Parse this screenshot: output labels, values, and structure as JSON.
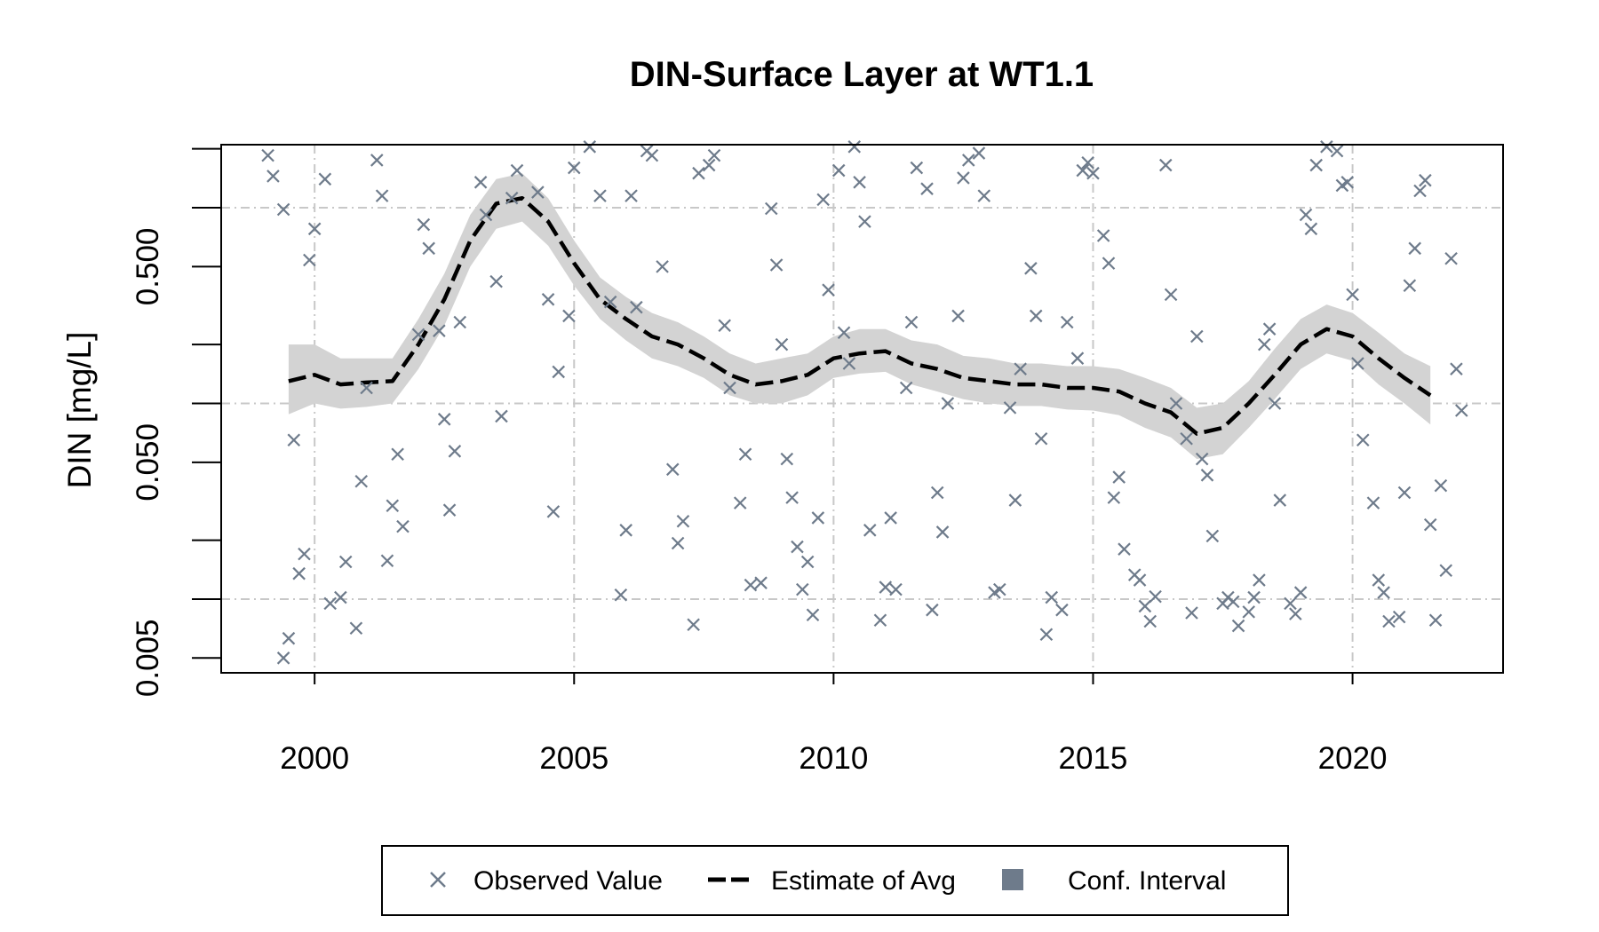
{
  "chart_data": {
    "type": "scatter",
    "title": "DIN-Surface Layer at WT1.1",
    "xlabel": "",
    "ylabel": "DIN [mg/L]",
    "y_scale": "log",
    "xlim": [
      1998.2,
      2022.9
    ],
    "ylim": [
      0.0042,
      2.1
    ],
    "x_ticks": [
      2000,
      2005,
      2010,
      2015,
      2020
    ],
    "x_tick_labels": [
      "2000",
      "2005",
      "2010",
      "2015",
      "2020"
    ],
    "y_ticks": [
      0.005,
      0.05,
      0.5
    ],
    "y_tick_labels": [
      "0.005",
      "0.050",
      "0.500"
    ],
    "y_minor_ticks": [
      0.01,
      0.02,
      0.1,
      0.2,
      1.0,
      2.0
    ],
    "grid": true,
    "colors": {
      "observed": "#6e7b8b",
      "estimate": "#000000",
      "ci": "#d3d3d3",
      "grid": "#c8c8c8"
    },
    "legend": {
      "position": "bottom",
      "items": [
        {
          "label": "Observed Value",
          "icon": "x-marker"
        },
        {
          "label": "Estimate of Avg",
          "icon": "dashed-line"
        },
        {
          "label": "Conf. Interval",
          "icon": "filled-square"
        }
      ]
    },
    "series": [
      {
        "name": "Observed Value",
        "type": "scatter",
        "points": [
          [
            1999.1,
            1.85
          ],
          [
            1999.2,
            1.45
          ],
          [
            1999.4,
            0.98
          ],
          [
            1999.6,
            0.065
          ],
          [
            1999.7,
            0.0135
          ],
          [
            1999.8,
            0.017
          ],
          [
            1999.5,
            0.0063
          ],
          [
            1999.4,
            0.005
          ],
          [
            1999.9,
            0.54
          ],
          [
            2000.0,
            0.78
          ],
          [
            2000.2,
            1.4
          ],
          [
            2000.3,
            0.0095
          ],
          [
            2000.5,
            0.0102
          ],
          [
            2000.6,
            0.0155
          ],
          [
            2000.8,
            0.0071
          ],
          [
            2000.9,
            0.04
          ],
          [
            2001.0,
            0.12
          ],
          [
            2001.2,
            1.75
          ],
          [
            2001.3,
            1.15
          ],
          [
            2001.4,
            0.0157
          ],
          [
            2001.5,
            0.03
          ],
          [
            2001.6,
            0.055
          ],
          [
            2001.7,
            0.0235
          ],
          [
            2002.0,
            0.225
          ],
          [
            2002.1,
            0.82
          ],
          [
            2002.2,
            0.62
          ],
          [
            2002.4,
            0.235
          ],
          [
            2002.5,
            0.083
          ],
          [
            2002.6,
            0.0285
          ],
          [
            2002.7,
            0.057
          ],
          [
            2002.8,
            0.26
          ],
          [
            2003.2,
            1.35
          ],
          [
            2003.3,
            0.92
          ],
          [
            2003.5,
            0.42
          ],
          [
            2003.6,
            0.086
          ],
          [
            2003.8,
            1.12
          ],
          [
            2003.9,
            1.55
          ],
          [
            2004.1,
            2.1
          ],
          [
            2004.3,
            1.2
          ],
          [
            2004.5,
            0.34
          ],
          [
            2004.6,
            0.028
          ],
          [
            2004.7,
            0.145
          ],
          [
            2004.9,
            0.28
          ],
          [
            2005.0,
            1.6
          ],
          [
            2005.3,
            2.05
          ],
          [
            2005.5,
            1.15
          ],
          [
            2005.7,
            0.33
          ],
          [
            2005.9,
            0.0105
          ],
          [
            2006.0,
            0.0225
          ],
          [
            2006.1,
            1.15
          ],
          [
            2006.2,
            0.31
          ],
          [
            2006.4,
            1.95
          ],
          [
            2006.5,
            1.85
          ],
          [
            2006.7,
            0.5
          ],
          [
            2006.9,
            0.046
          ],
          [
            2007.0,
            0.0193
          ],
          [
            2007.1,
            0.025
          ],
          [
            2007.3,
            0.0074
          ],
          [
            2007.4,
            1.5
          ],
          [
            2007.6,
            1.65
          ],
          [
            2007.7,
            1.85
          ],
          [
            2007.9,
            0.25
          ],
          [
            2008.0,
            0.12
          ],
          [
            2008.2,
            0.031
          ],
          [
            2008.3,
            0.055
          ],
          [
            2008.4,
            0.0118
          ],
          [
            2008.6,
            0.0121
          ],
          [
            2008.8,
            0.99
          ],
          [
            2008.9,
            0.51
          ],
          [
            2009.0,
            0.2
          ],
          [
            2009.1,
            0.052
          ],
          [
            2009.2,
            0.033
          ],
          [
            2009.3,
            0.0185
          ],
          [
            2009.4,
            0.0112
          ],
          [
            2009.5,
            0.0155
          ],
          [
            2009.6,
            0.0083
          ],
          [
            2009.7,
            0.026
          ],
          [
            2009.8,
            1.1
          ],
          [
            2009.9,
            0.38
          ],
          [
            2010.1,
            1.55
          ],
          [
            2010.2,
            0.23
          ],
          [
            2010.3,
            0.16
          ],
          [
            2010.4,
            2.05
          ],
          [
            2010.5,
            1.35
          ],
          [
            2010.6,
            0.85
          ],
          [
            2010.7,
            0.0225
          ],
          [
            2010.9,
            0.0078
          ],
          [
            2011.0,
            0.0115
          ],
          [
            2011.1,
            0.026
          ],
          [
            2011.2,
            0.0112
          ],
          [
            2011.4,
            0.12
          ],
          [
            2011.5,
            0.26
          ],
          [
            2011.6,
            1.6
          ],
          [
            2011.8,
            1.25
          ],
          [
            2011.9,
            0.0088
          ],
          [
            2012.0,
            0.035
          ],
          [
            2012.1,
            0.022
          ],
          [
            2012.2,
            0.1
          ],
          [
            2012.4,
            0.28
          ],
          [
            2012.5,
            1.42
          ],
          [
            2012.6,
            1.75
          ],
          [
            2012.8,
            1.9
          ],
          [
            2012.9,
            1.15
          ],
          [
            2013.1,
            0.0108
          ],
          [
            2013.2,
            0.0112
          ],
          [
            2013.4,
            0.095
          ],
          [
            2013.5,
            0.032
          ],
          [
            2013.6,
            0.15
          ],
          [
            2013.8,
            0.49
          ],
          [
            2013.9,
            0.28
          ],
          [
            2014.0,
            0.066
          ],
          [
            2014.1,
            0.0066
          ],
          [
            2014.2,
            0.0102
          ],
          [
            2014.4,
            0.0088
          ],
          [
            2014.5,
            0.26
          ],
          [
            2014.7,
            0.17
          ],
          [
            2014.8,
            1.55
          ],
          [
            2014.9,
            1.7
          ],
          [
            2015.0,
            1.5
          ],
          [
            2015.2,
            0.72
          ],
          [
            2015.3,
            0.52
          ],
          [
            2015.4,
            0.033
          ],
          [
            2015.5,
            0.042
          ],
          [
            2015.6,
            0.018
          ],
          [
            2015.8,
            0.0133
          ],
          [
            2015.9,
            0.0125
          ],
          [
            2016.0,
            0.0092
          ],
          [
            2016.1,
            0.0077
          ],
          [
            2016.2,
            0.0103
          ],
          [
            2016.4,
            1.65
          ],
          [
            2016.5,
            0.36
          ],
          [
            2016.6,
            0.1
          ],
          [
            2016.8,
            0.066
          ],
          [
            2016.9,
            0.0085
          ],
          [
            2017.0,
            0.22
          ],
          [
            2017.1,
            0.052
          ],
          [
            2017.2,
            0.043
          ],
          [
            2017.3,
            0.021
          ],
          [
            2017.5,
            0.0095
          ],
          [
            2017.6,
            0.0102
          ],
          [
            2017.7,
            0.0097
          ],
          [
            2017.8,
            0.0073
          ],
          [
            2018.0,
            0.0086
          ],
          [
            2018.1,
            0.0102
          ],
          [
            2018.2,
            0.0125
          ],
          [
            2018.3,
            0.2
          ],
          [
            2018.4,
            0.24
          ],
          [
            2018.5,
            0.1
          ],
          [
            2018.6,
            0.032
          ],
          [
            2018.8,
            0.0095
          ],
          [
            2018.9,
            0.0084
          ],
          [
            2019.0,
            0.0108
          ],
          [
            2019.1,
            0.92
          ],
          [
            2019.2,
            0.78
          ],
          [
            2019.3,
            1.65
          ],
          [
            2019.5,
            2.05
          ],
          [
            2019.6,
            2.3
          ],
          [
            2019.7,
            1.95
          ],
          [
            2019.8,
            1.3
          ],
          [
            2019.9,
            1.35
          ],
          [
            2020.0,
            0.36
          ],
          [
            2020.1,
            0.16
          ],
          [
            2020.2,
            0.065
          ],
          [
            2020.4,
            0.031
          ],
          [
            2020.5,
            0.0125
          ],
          [
            2020.6,
            0.0108
          ],
          [
            2020.7,
            0.0077
          ],
          [
            2020.9,
            0.0081
          ],
          [
            2021.0,
            0.035
          ],
          [
            2021.1,
            0.4
          ],
          [
            2021.2,
            0.62
          ],
          [
            2021.3,
            1.22
          ],
          [
            2021.4,
            1.38
          ],
          [
            2021.5,
            0.024
          ],
          [
            2021.6,
            0.0078
          ],
          [
            2021.7,
            0.038
          ],
          [
            2021.8,
            0.014
          ],
          [
            2021.9,
            0.55
          ],
          [
            2022.0,
            0.15
          ],
          [
            2022.1,
            0.092
          ]
        ]
      },
      {
        "name": "Estimate of Avg",
        "type": "line",
        "x": [
          1999.5,
          2000.0,
          2000.5,
          2001.0,
          2001.5,
          2002.0,
          2002.5,
          2003.0,
          2003.5,
          2004.0,
          2004.5,
          2005.0,
          2005.5,
          2006.0,
          2006.5,
          2007.0,
          2007.5,
          2008.0,
          2008.5,
          2009.0,
          2009.5,
          2010.0,
          2010.5,
          2011.0,
          2011.5,
          2012.0,
          2012.5,
          2013.0,
          2013.5,
          2014.0,
          2014.5,
          2015.0,
          2015.5,
          2016.0,
          2016.5,
          2017.0,
          2017.5,
          2018.0,
          2018.5,
          2019.0,
          2019.5,
          2020.0,
          2020.5,
          2021.0,
          2021.5
        ],
        "y": [
          0.13,
          0.14,
          0.125,
          0.128,
          0.13,
          0.2,
          0.34,
          0.68,
          1.05,
          1.12,
          0.85,
          0.52,
          0.34,
          0.27,
          0.22,
          0.2,
          0.17,
          0.14,
          0.125,
          0.13,
          0.14,
          0.17,
          0.18,
          0.185,
          0.16,
          0.15,
          0.135,
          0.13,
          0.125,
          0.125,
          0.12,
          0.12,
          0.115,
          0.1,
          0.09,
          0.07,
          0.075,
          0.1,
          0.14,
          0.2,
          0.24,
          0.22,
          0.17,
          0.135,
          0.11
        ]
      },
      {
        "name": "Conf. Interval",
        "type": "band",
        "x": [
          1999.5,
          2000.0,
          2000.5,
          2001.0,
          2001.5,
          2002.0,
          2002.5,
          2003.0,
          2003.5,
          2004.0,
          2004.5,
          2005.0,
          2005.5,
          2006.0,
          2006.5,
          2007.0,
          2007.5,
          2008.0,
          2008.5,
          2009.0,
          2009.5,
          2010.0,
          2010.5,
          2011.0,
          2011.5,
          2012.0,
          2012.5,
          2013.0,
          2013.5,
          2014.0,
          2014.5,
          2015.0,
          2015.5,
          2016.0,
          2016.5,
          2017.0,
          2017.5,
          2018.0,
          2018.5,
          2019.0,
          2019.5,
          2020.0,
          2020.5,
          2021.0,
          2021.5
        ],
        "lower": [
          0.088,
          0.1,
          0.094,
          0.096,
          0.1,
          0.15,
          0.25,
          0.5,
          0.78,
          0.85,
          0.64,
          0.4,
          0.27,
          0.21,
          0.17,
          0.155,
          0.135,
          0.11,
          0.1,
          0.1,
          0.11,
          0.135,
          0.142,
          0.145,
          0.125,
          0.115,
          0.105,
          0.1,
          0.097,
          0.097,
          0.093,
          0.092,
          0.087,
          0.075,
          0.067,
          0.052,
          0.055,
          0.075,
          0.105,
          0.15,
          0.18,
          0.165,
          0.125,
          0.1,
          0.078
        ],
        "upper": [
          0.2,
          0.2,
          0.17,
          0.17,
          0.17,
          0.27,
          0.46,
          0.92,
          1.4,
          1.5,
          1.12,
          0.68,
          0.44,
          0.35,
          0.29,
          0.26,
          0.22,
          0.18,
          0.16,
          0.17,
          0.18,
          0.22,
          0.24,
          0.24,
          0.21,
          0.2,
          0.175,
          0.17,
          0.16,
          0.16,
          0.155,
          0.155,
          0.15,
          0.135,
          0.12,
          0.095,
          0.1,
          0.13,
          0.19,
          0.27,
          0.32,
          0.29,
          0.23,
          0.18,
          0.155
        ]
      }
    ]
  }
}
